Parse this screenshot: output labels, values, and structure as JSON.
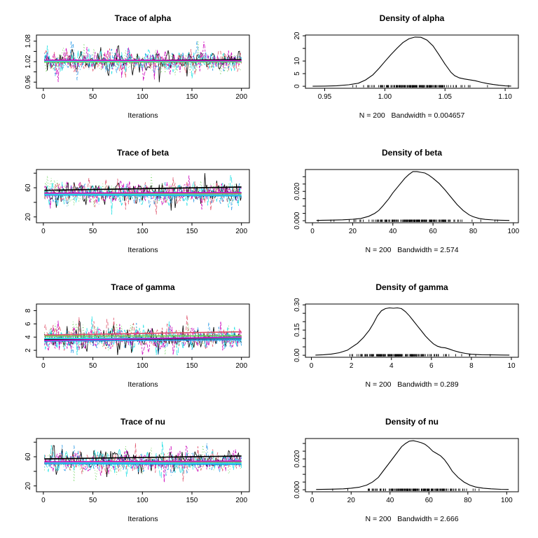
{
  "layout": {
    "background": "#ffffff",
    "axis_color": "#000000"
  },
  "chain_colors": [
    "#000000",
    "#DF536B",
    "#61D04F",
    "#2297E6",
    "#28E2E5",
    "#CD0BBC"
  ],
  "chain_dashes": [
    "",
    "5,3",
    "1,3",
    "1,3,5,3",
    "8,3",
    "3,2,6,2"
  ],
  "chart_data": [
    {
      "type": "line",
      "kind": "trace",
      "title": "Trace of alpha",
      "xlabel": "Iterations",
      "n": 200,
      "xlim": [
        -7,
        208
      ],
      "xticks": [
        0,
        50,
        100,
        150,
        200
      ],
      "xticklabels": [
        "0",
        "50",
        "100",
        "150",
        "200"
      ],
      "ylim": [
        0.942,
        1.098
      ],
      "yticks": [
        0.96,
        0.99,
        1.02,
        1.05,
        1.08
      ],
      "yticklabels": [
        "0.96",
        "",
        "1.02",
        "",
        "1.08"
      ],
      "clamp": [
        0.948,
        1.092
      ],
      "chains": [
        {
          "mean": 1.022,
          "sd": 0.02,
          "smooth": [
            1.021,
            1.026
          ],
          "seed": 101
        },
        {
          "mean": 1.021,
          "sd": 0.02,
          "smooth": [
            1.0205,
            1.021
          ],
          "seed": 102
        },
        {
          "mean": 1.02,
          "sd": 0.02,
          "smooth": [
            1.019,
            1.0195
          ],
          "seed": 103
        },
        {
          "mean": 1.023,
          "sd": 0.02,
          "smooth": [
            1.023,
            1.022
          ],
          "seed": 104
        },
        {
          "mean": 1.022,
          "sd": 0.02,
          "smooth": [
            1.0215,
            1.0225
          ],
          "seed": 105
        },
        {
          "mean": 1.024,
          "sd": 0.02,
          "smooth": [
            1.0245,
            1.023
          ],
          "seed": 106
        }
      ]
    },
    {
      "type": "line",
      "kind": "density",
      "title": "Density of alpha",
      "sublabel": "N = 200   Bandwidth = 0.004657",
      "xlim": [
        0.934,
        1.111
      ],
      "xticks": [
        0.95,
        1.0,
        1.05,
        1.1
      ],
      "xticklabels": [
        "0.95",
        "1.00",
        "1.05",
        "1.10"
      ],
      "ylim": [
        -0.8,
        20.3
      ],
      "yticks": [
        0,
        5,
        10,
        15,
        20
      ],
      "yticklabels": [
        "0",
        "5",
        "10",
        "",
        "20"
      ],
      "curve": {
        "x": [
          0.94,
          0.95,
          0.96,
          0.97,
          0.978,
          0.984,
          0.99,
          0.995,
          1.0,
          1.005,
          1.01,
          1.015,
          1.02,
          1.025,
          1.03,
          1.035,
          1.04,
          1.045,
          1.05,
          1.055,
          1.058,
          1.062,
          1.066,
          1.07,
          1.075,
          1.08,
          1.085,
          1.09,
          1.095,
          1.1,
          1.105
        ],
        "y": [
          0.0,
          0.05,
          0.2,
          0.6,
          1.2,
          2.5,
          4.5,
          7.0,
          9.8,
          12.5,
          15.0,
          17.3,
          18.8,
          19.5,
          19.4,
          18.3,
          16.0,
          12.5,
          8.8,
          5.5,
          4.2,
          3.3,
          2.9,
          2.6,
          2.2,
          1.6,
          1.1,
          0.7,
          0.4,
          0.15,
          0.05
        ]
      },
      "rug": {
        "seed": 151,
        "count": 170
      }
    },
    {
      "type": "line",
      "kind": "trace",
      "title": "Trace of beta",
      "xlabel": "Iterations",
      "n": 200,
      "xlim": [
        -7,
        208
      ],
      "xticks": [
        0,
        50,
        100,
        150,
        200
      ],
      "xticklabels": [
        "0",
        "50",
        "100",
        "150",
        "200"
      ],
      "ylim": [
        12,
        85
      ],
      "yticks": [
        20,
        40,
        60,
        80
      ],
      "yticklabels": [
        "20",
        "",
        "60",
        ""
      ],
      "clamp": [
        14.5,
        82
      ],
      "chains": [
        {
          "mean": 54,
          "sd": 9,
          "smooth": [
            56.5,
            61
          ],
          "seed": 201
        },
        {
          "mean": 51,
          "sd": 9,
          "smooth": [
            51,
            52
          ],
          "seed": 202
        },
        {
          "mean": 52,
          "sd": 9,
          "smooth": [
            52,
            52.5
          ],
          "seed": 203
        },
        {
          "mean": 50,
          "sd": 9,
          "smooth": [
            50,
            49
          ],
          "seed": 204
        },
        {
          "mean": 51,
          "sd": 9,
          "smooth": [
            51,
            50
          ],
          "seed": 205
        },
        {
          "mean": 52,
          "sd": 9,
          "smooth": [
            52.5,
            53.5
          ],
          "seed": 206
        }
      ]
    },
    {
      "type": "line",
      "kind": "density",
      "title": "Density of beta",
      "sublabel": "N = 200   Bandwidth = 2.574",
      "xlim": [
        -3.5,
        102.5
      ],
      "xticks": [
        0,
        20,
        40,
        60,
        80,
        100
      ],
      "xticklabels": [
        "0",
        "20",
        "40",
        "60",
        "80",
        "100"
      ],
      "ylim": [
        -0.0014,
        0.0349
      ],
      "yticks": [
        0,
        0.005,
        0.01,
        0.015,
        0.02,
        0.025,
        0.03
      ],
      "yticklabels": [
        "0.000",
        "",
        "",
        "",
        "0.020",
        "",
        ""
      ],
      "curve": {
        "x": [
          2,
          5,
          10,
          15,
          20,
          24,
          28,
          31,
          33,
          35,
          38,
          40,
          43,
          46,
          48,
          50,
          52,
          54,
          56,
          58,
          60,
          63,
          66,
          69,
          72,
          75,
          78,
          80,
          83,
          86,
          90,
          94,
          98
        ],
        "y": [
          0.0002,
          0.0003,
          0.0004,
          0.0006,
          0.001,
          0.0015,
          0.003,
          0.005,
          0.007,
          0.01,
          0.015,
          0.019,
          0.024,
          0.029,
          0.0315,
          0.0335,
          0.0335,
          0.033,
          0.0325,
          0.031,
          0.029,
          0.0255,
          0.021,
          0.016,
          0.011,
          0.007,
          0.004,
          0.0027,
          0.0015,
          0.0009,
          0.0005,
          0.0003,
          0.0002
        ]
      },
      "rug": {
        "seed": 251,
        "count": 170
      }
    },
    {
      "type": "line",
      "kind": "trace",
      "title": "Trace of gamma",
      "xlabel": "Iterations",
      "n": 200,
      "xlim": [
        -7,
        208
      ],
      "xticks": [
        0,
        50,
        100,
        150,
        200
      ],
      "xticklabels": [
        "0",
        "50",
        "100",
        "150",
        "200"
      ],
      "ylim": [
        0.95,
        9.0
      ],
      "yticks": [
        2,
        4,
        6,
        8
      ],
      "yticklabels": [
        "2",
        "4",
        "6",
        "8"
      ],
      "clamp": [
        1.28,
        8.75
      ],
      "chains": [
        {
          "mean": 3.8,
          "sd": 1.05,
          "smooth": [
            3.6,
            3.8
          ],
          "seed": 301
        },
        {
          "mean": 4.1,
          "sd": 1.05,
          "smooth": [
            4.3,
            4.8
          ],
          "seed": 302
        },
        {
          "mean": 4.0,
          "sd": 1.05,
          "smooth": [
            4.15,
            4.2
          ],
          "seed": 303
        },
        {
          "mean": 3.7,
          "sd": 1.05,
          "smooth": [
            3.4,
            3.6
          ],
          "seed": 304
        },
        {
          "mean": 3.9,
          "sd": 1.05,
          "smooth": [
            3.8,
            3.85
          ],
          "seed": 305
        },
        {
          "mean": 3.8,
          "sd": 1.05,
          "smooth": [
            3.5,
            4.0
          ],
          "seed": 306
        }
      ]
    },
    {
      "type": "line",
      "kind": "density",
      "title": "Density of gamma",
      "sublabel": "N = 200   Bandwidth = 0.289",
      "xlim": [
        -0.3,
        10.35
      ],
      "xticks": [
        0,
        2,
        4,
        6,
        8,
        10
      ],
      "xticklabels": [
        "0",
        "2",
        "4",
        "6",
        "8",
        "10"
      ],
      "ylim": [
        -0.012,
        0.305
      ],
      "yticks": [
        0,
        0.05,
        0.1,
        0.15,
        0.2,
        0.25,
        0.3
      ],
      "yticklabels": [
        "0.00",
        "",
        "",
        "0.15",
        "",
        "",
        "0.30"
      ],
      "curve": {
        "x": [
          0.2,
          0.6,
          1.0,
          1.4,
          1.8,
          2.0,
          2.3,
          2.6,
          2.9,
          3.1,
          3.3,
          3.5,
          3.7,
          3.9,
          4.1,
          4.3,
          4.5,
          4.7,
          4.9,
          5.1,
          5.3,
          5.5,
          5.7,
          5.9,
          6.1,
          6.3,
          6.5,
          6.7,
          6.9,
          7.1,
          7.4,
          7.7,
          8.0,
          8.5,
          9.0,
          9.5,
          9.9
        ],
        "y": [
          0.001,
          0.003,
          0.007,
          0.015,
          0.03,
          0.047,
          0.07,
          0.105,
          0.15,
          0.19,
          0.235,
          0.265,
          0.278,
          0.282,
          0.28,
          0.282,
          0.278,
          0.26,
          0.235,
          0.205,
          0.175,
          0.145,
          0.115,
          0.09,
          0.068,
          0.054,
          0.047,
          0.044,
          0.037,
          0.028,
          0.018,
          0.011,
          0.006,
          0.003,
          0.002,
          0.0015,
          0.001
        ]
      },
      "rug": {
        "seed": 351,
        "count": 150
      }
    },
    {
      "type": "line",
      "kind": "trace",
      "title": "Trace of nu",
      "xlabel": "Iterations",
      "n": 200,
      "xlim": [
        -7,
        208
      ],
      "xticks": [
        0,
        50,
        100,
        150,
        200
      ],
      "xticklabels": [
        "0",
        "50",
        "100",
        "150",
        "200"
      ],
      "ylim": [
        12,
        85
      ],
      "yticks": [
        20,
        40,
        60,
        80
      ],
      "yticklabels": [
        "20",
        "",
        "60",
        ""
      ],
      "clamp": [
        14.5,
        82
      ],
      "chains": [
        {
          "mean": 55,
          "sd": 9,
          "smooth": [
            57,
            61
          ],
          "seed": 401
        },
        {
          "mean": 52,
          "sd": 9,
          "smooth": [
            52,
            53
          ],
          "seed": 402
        },
        {
          "mean": 53,
          "sd": 9,
          "smooth": [
            53,
            53
          ],
          "seed": 403
        },
        {
          "mean": 50.5,
          "sd": 9,
          "smooth": [
            50.5,
            49.5
          ],
          "seed": 404
        },
        {
          "mean": 52,
          "sd": 9,
          "smooth": [
            52,
            51
          ],
          "seed": 405
        },
        {
          "mean": 53,
          "sd": 9,
          "smooth": [
            53,
            54
          ],
          "seed": 406
        }
      ]
    },
    {
      "type": "line",
      "kind": "density",
      "title": "Density of nu",
      "sublabel": "N = 200   Bandwidth = 2.666",
      "xlim": [
        -3.5,
        106
      ],
      "xticks": [
        0,
        20,
        40,
        60,
        80,
        100
      ],
      "xticklabels": [
        "0",
        "20",
        "40",
        "60",
        "80",
        "100"
      ],
      "ylim": [
        -0.0013,
        0.0332
      ],
      "yticks": [
        0,
        0.005,
        0.01,
        0.015,
        0.02,
        0.025,
        0.03
      ],
      "yticklabels": [
        "0.000",
        "",
        "",
        "",
        "0.020",
        "",
        ""
      ],
      "curve": {
        "x": [
          2,
          10,
          16,
          20,
          24,
          28,
          31,
          34,
          37,
          40,
          43,
          46,
          48,
          50,
          52,
          54,
          56,
          58,
          60,
          62,
          64,
          66,
          68,
          70,
          72,
          75,
          78,
          81,
          84,
          88,
          92,
          97,
          101
        ],
        "y": [
          0.0002,
          0.0004,
          0.0006,
          0.001,
          0.0016,
          0.003,
          0.005,
          0.008,
          0.013,
          0.018,
          0.023,
          0.028,
          0.03,
          0.0315,
          0.0318,
          0.0312,
          0.0305,
          0.0295,
          0.0275,
          0.025,
          0.0235,
          0.022,
          0.0195,
          0.016,
          0.012,
          0.008,
          0.005,
          0.003,
          0.0018,
          0.001,
          0.0006,
          0.0003,
          0.0002
        ]
      },
      "rug": {
        "seed": 451,
        "count": 170
      }
    }
  ]
}
